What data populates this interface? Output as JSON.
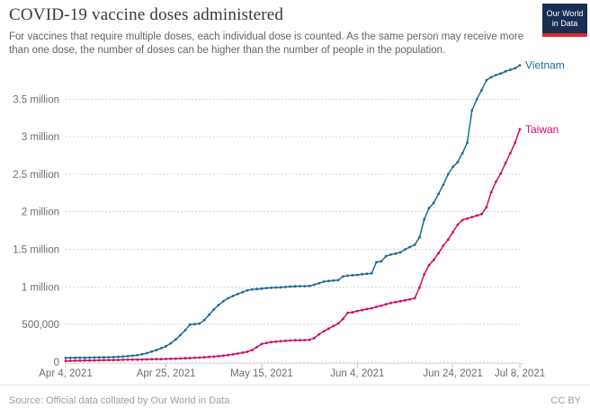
{
  "header": {
    "title": "COVID-19 vaccine doses administered",
    "subtitle_line1": "For vaccines that require multiple doses, each individual dose is counted. As the same person may receive more",
    "subtitle_line2": "than one dose, the number of doses can be higher than the number of people in the population.",
    "logo": {
      "line1": "Our World",
      "line2": "in Data",
      "bg_color": "#1A2E54",
      "accent_color": "#D42B2F"
    }
  },
  "chart_data": {
    "type": "line",
    "title": "COVID-19 vaccine doses administered",
    "x_unit": "day",
    "start_date": "Apr 4, 2021",
    "end_date": "Jul 8, 2021",
    "n_points": 96,
    "grid": "horizontal-dotted",
    "legend_position": "line-end-labels",
    "y_axis": {
      "min": 0,
      "max": 3500000,
      "ticks": [
        {
          "value": 0,
          "label": "0"
        },
        {
          "value": 500000,
          "label": "500,000"
        },
        {
          "value": 1000000,
          "label": "1 million"
        },
        {
          "value": 1500000,
          "label": "1.5 million"
        },
        {
          "value": 2000000,
          "label": "2 million"
        },
        {
          "value": 2500000,
          "label": "2.5 million"
        },
        {
          "value": 3000000,
          "label": "3 million"
        },
        {
          "value": 3500000,
          "label": "3.5 million"
        }
      ]
    },
    "x_axis": {
      "ticks": [
        {
          "index": 0,
          "label": "Apr 4, 2021"
        },
        {
          "index": 21,
          "label": "Apr 25, 2021"
        },
        {
          "index": 41,
          "label": "May 15, 2021"
        },
        {
          "index": 61,
          "label": "Jun 4, 2021"
        },
        {
          "index": 81,
          "label": "Jun 24, 2021"
        },
        {
          "index": 95,
          "label": "Jul 8, 2021"
        }
      ]
    },
    "series": [
      {
        "name": "Vietnam",
        "color": "#1d6996",
        "values": [
          55000,
          56000,
          57000,
          58000,
          59000,
          60000,
          61000,
          62000,
          63000,
          65000,
          67000,
          70000,
          74000,
          79000,
          85000,
          92000,
          105000,
          120000,
          140000,
          160000,
          185000,
          210000,
          250000,
          300000,
          360000,
          425000,
          500000,
          506000,
          512000,
          560000,
          630000,
          700000,
          760000,
          810000,
          850000,
          880000,
          907000,
          930000,
          955000,
          967000,
          972000,
          978000,
          985000,
          990000,
          993000,
          996000,
          1000000,
          1004000,
          1008000,
          1010000,
          1011000,
          1013000,
          1030000,
          1050000,
          1070000,
          1080000,
          1085000,
          1090000,
          1140000,
          1150000,
          1155000,
          1160000,
          1170000,
          1175000,
          1180000,
          1330000,
          1340000,
          1410000,
          1430000,
          1445000,
          1460000,
          1500000,
          1530000,
          1560000,
          1660000,
          1900000,
          2050000,
          2120000,
          2240000,
          2360000,
          2500000,
          2600000,
          2660000,
          2780000,
          2920000,
          3350000,
          3500000,
          3620000,
          3750000,
          3790000,
          3820000,
          3840000,
          3870000,
          3890000,
          3910000,
          3950000
        ]
      },
      {
        "name": "Taiwan",
        "color": "#cf0a66",
        "values": [
          16000,
          17000,
          18000,
          19000,
          21000,
          22000,
          23000,
          24000,
          25000,
          26000,
          28000,
          29000,
          31000,
          32000,
          33000,
          34000,
          35000,
          36000,
          38000,
          39000,
          40000,
          42000,
          44000,
          46000,
          48000,
          51000,
          54000,
          57000,
          60000,
          64000,
          68000,
          73000,
          79000,
          86000,
          94000,
          103000,
          113000,
          125000,
          138000,
          160000,
          200000,
          240000,
          255000,
          265000,
          272000,
          278000,
          283000,
          287000,
          290000,
          292000,
          293000,
          295000,
          320000,
          370000,
          410000,
          445000,
          480000,
          513000,
          573000,
          656000,
          662000,
          680000,
          692000,
          705000,
          716000,
          735000,
          750000,
          770000,
          787000,
          800000,
          811000,
          822000,
          835000,
          850000,
          990000,
          1170000,
          1290000,
          1360000,
          1450000,
          1550000,
          1630000,
          1730000,
          1830000,
          1890000,
          1910000,
          1930000,
          1950000,
          1970000,
          2060000,
          2260000,
          2400000,
          2510000,
          2650000,
          2780000,
          2920000,
          3100000
        ]
      }
    ]
  },
  "footer": {
    "source": "Source: Official data collated by Our World in Data",
    "license": "CC BY"
  }
}
